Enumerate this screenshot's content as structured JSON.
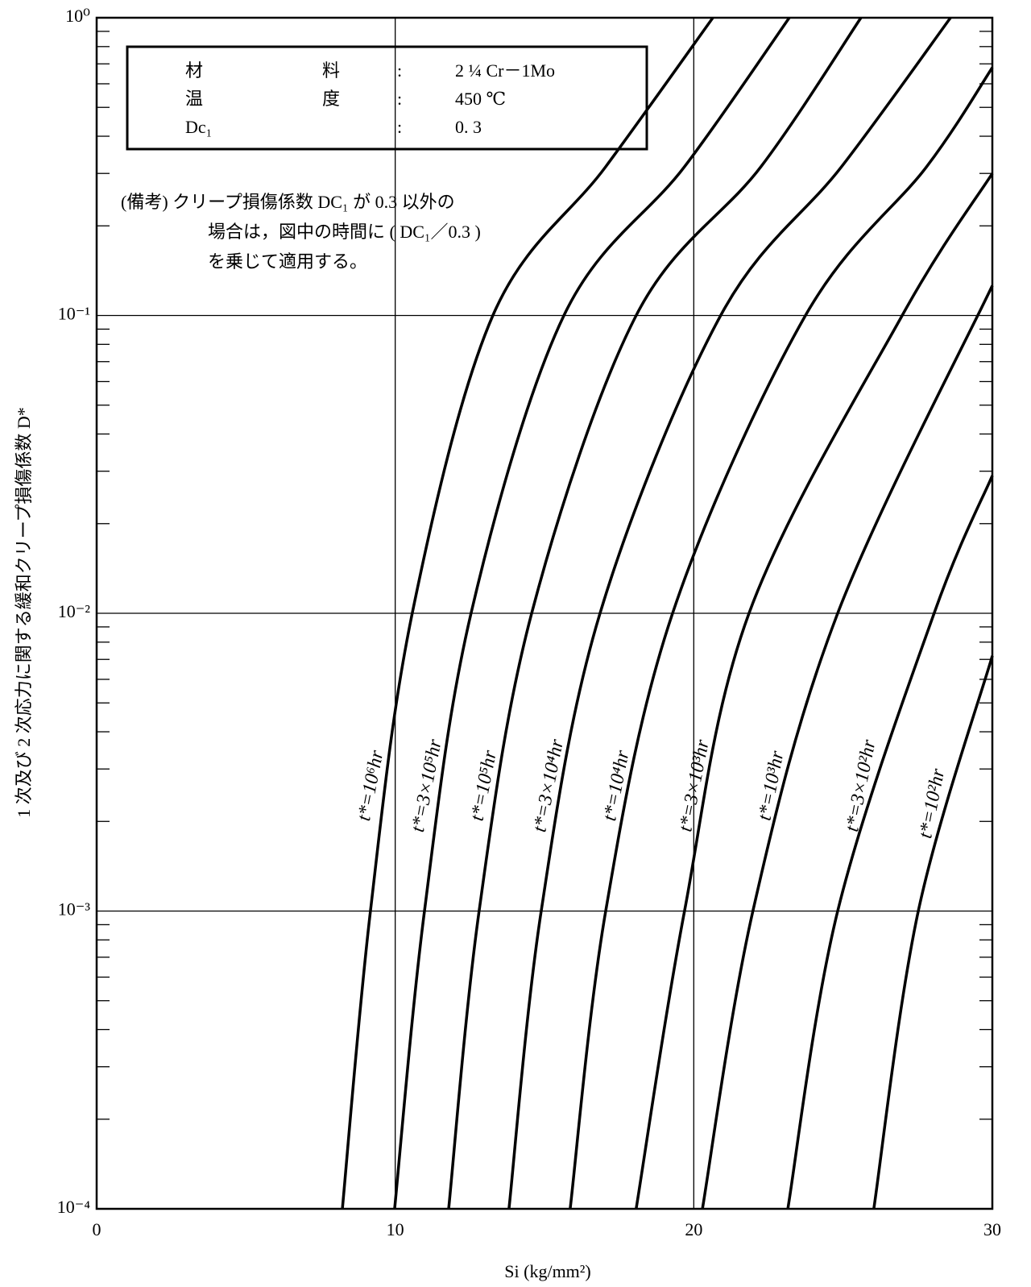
{
  "chart_data": {
    "type": "line",
    "xlabel": "Si (kg/mm²)",
    "ylabel": "1 次及び 2 次応力に関する緩和クリープ損傷係数 D*",
    "xlim": [
      0,
      30
    ],
    "ylim": [
      0.0001,
      1
    ],
    "log_y": true,
    "xticks": [
      0,
      10,
      20,
      30
    ],
    "yticks": [
      {
        "value": 0.0001,
        "label": "10⁻⁴"
      },
      {
        "value": 0.001,
        "label": "10⁻³"
      },
      {
        "value": 0.01,
        "label": "10⁻²"
      },
      {
        "value": 0.1,
        "label": "10⁻¹"
      },
      {
        "value": 1,
        "label": "10⁰"
      }
    ],
    "grid_x": [
      10,
      20
    ],
    "grid": true,
    "info_box": [
      {
        "label": [
          "材",
          "料"
        ],
        "value": "2 ¼ Cr－1Mo"
      },
      {
        "label": [
          "温",
          "度"
        ],
        "value": "450 ℃"
      },
      {
        "label": [
          "Dc₁"
        ],
        "value": "0. 3"
      }
    ],
    "separator": ":",
    "note": [
      "(備考) クリープ損傷係数 DC₁ が 0.3 以外の",
      "場合は，図中の時間に ( DC₁／0.3 )",
      "を乗じて適用する。"
    ],
    "series": [
      {
        "name": "t*=10⁶hr",
        "color": "#000000",
        "x": [
          8.23,
          9.17,
          10.57,
          13.27,
          17.05,
          20.64
        ],
        "values": [
          0.0001,
          0.001,
          0.01,
          0.1,
          0.316,
          1
        ]
      },
      {
        "name": "t*=3×10⁵hr",
        "color": "#000000",
        "x": [
          9.98,
          10.98,
          12.54,
          15.65,
          19.69,
          23.2
        ],
        "values": [
          0.0001,
          0.001,
          0.01,
          0.1,
          0.316,
          1
        ]
      },
      {
        "name": "t*=10⁵hr",
        "color": "#000000",
        "x": [
          11.79,
          12.81,
          14.57,
          18.07,
          22.25,
          25.6
        ],
        "values": [
          0.0001,
          0.001,
          0.01,
          0.1,
          0.316,
          1
        ]
      },
      {
        "name": "t*=3×10⁴hr",
        "color": "#000000",
        "x": [
          13.81,
          14.89,
          16.86,
          20.9,
          24.95,
          28.6
        ],
        "values": [
          0.0001,
          0.001,
          0.01,
          0.1,
          0.316,
          1
        ]
      },
      {
        "name": "t*=10⁴hr",
        "color": "#000000",
        "x": [
          15.86,
          17.05,
          19.29,
          23.74,
          27.8,
          30
        ],
        "values": [
          0.0001,
          0.001,
          0.01,
          0.1,
          0.316,
          0.68
        ]
      },
      {
        "name": "t*=3×10³hr",
        "color": "#000000",
        "x": [
          18.07,
          19.69,
          21.85,
          26.98,
          30
        ],
        "values": [
          0.0001,
          0.001,
          0.01,
          0.1,
          0.3
        ]
      },
      {
        "name": "t*=10³hr",
        "color": "#000000",
        "x": [
          20.29,
          21.98,
          24.82,
          30
        ],
        "values": [
          0.0001,
          0.001,
          0.01,
          0.126
        ]
      },
      {
        "name": "t*=3×10²hr",
        "color": "#000000",
        "x": [
          23.15,
          24.82,
          28.05,
          30
        ],
        "values": [
          0.0001,
          0.001,
          0.01,
          0.029
        ]
      },
      {
        "name": "t*=10²hr",
        "color": "#000000",
        "x": [
          26.03,
          27.52,
          30
        ],
        "values": [
          0.0001,
          0.001,
          0.0072
        ]
      }
    ]
  }
}
